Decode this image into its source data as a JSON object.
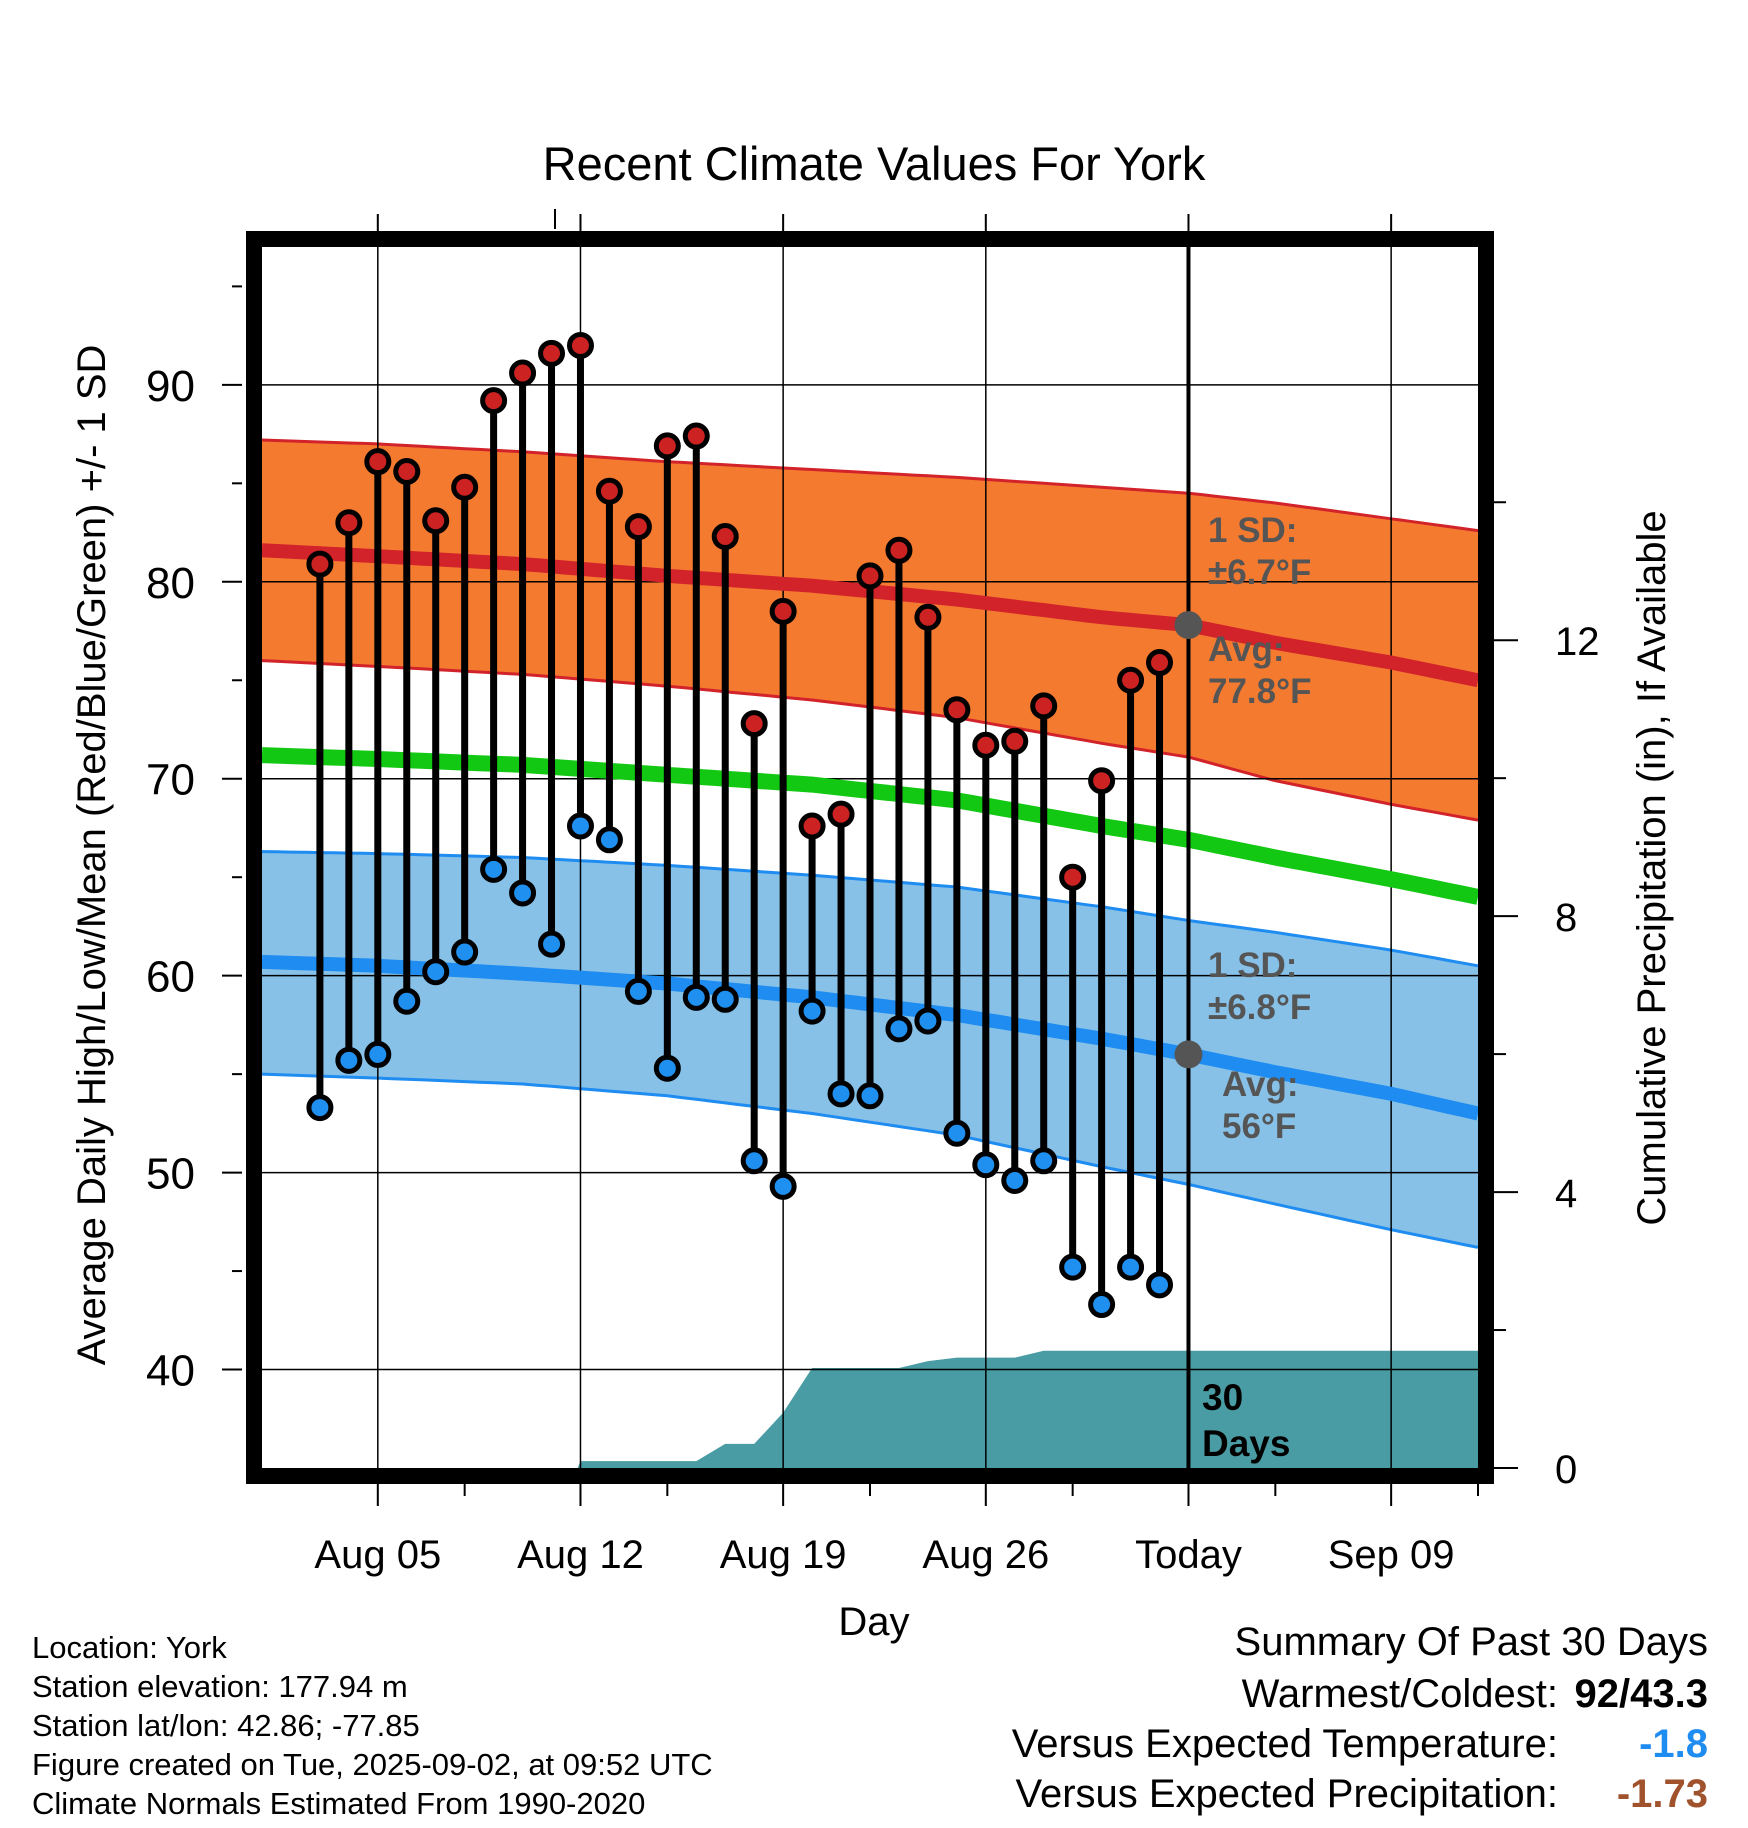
{
  "chart_data": {
    "type": "line",
    "title": "Recent Climate Values For York",
    "xlabel": "Day",
    "ylabel_left": "Average Daily High/Low/Mean (Red/Blue/Green) +/- 1 SD",
    "ylabel_right": "Cumulative Precipitation (in), If Available",
    "x_day_range": [
      1,
      43
    ],
    "x_ticks": [
      {
        "day": 5,
        "label": "Aug 05"
      },
      {
        "day": 12,
        "label": "Aug 12"
      },
      {
        "day": 19,
        "label": "Aug 19"
      },
      {
        "day": 26,
        "label": "Aug 26"
      },
      {
        "day": 33,
        "label": "Today"
      },
      {
        "day": 40,
        "label": "Sep 09"
      }
    ],
    "ylim_temp": [
      35,
      97
    ],
    "y_ticks_temp": [
      40,
      50,
      60,
      70,
      80,
      90
    ],
    "ylim_precip": [
      0,
      17.7
    ],
    "y_ticks_precip": [
      0,
      4,
      8,
      12
    ],
    "grid": true,
    "highs": [
      80.9,
      83.0,
      86.1,
      85.6,
      83.1,
      84.8,
      89.2,
      90.6,
      91.6,
      92.0,
      84.6,
      82.8,
      86.9,
      87.4,
      82.3,
      72.8,
      78.5,
      67.6,
      68.2,
      80.3,
      81.6,
      78.2,
      73.5,
      71.7,
      71.9,
      73.7,
      65.0,
      69.9,
      75.0,
      75.9
    ],
    "lows": [
      53.3,
      55.7,
      56.0,
      58.7,
      60.2,
      61.2,
      65.4,
      64.2,
      61.6,
      67.6,
      66.9,
      59.2,
      55.3,
      58.9,
      58.8,
      50.6,
      49.3,
      58.2,
      54.0,
      53.9,
      57.3,
      57.7,
      52.0,
      50.4,
      49.6,
      50.6,
      45.2,
      43.3,
      45.2,
      44.3
    ],
    "normal_high": {
      "days": [
        1,
        5,
        10,
        15,
        20,
        25,
        30,
        33,
        36,
        40,
        43
      ],
      "mean": [
        81.6,
        81.3,
        80.9,
        80.3,
        79.8,
        79.1,
        78.2,
        77.8,
        76.9,
        75.9,
        75.0
      ],
      "upper": [
        87.2,
        87.0,
        86.6,
        86.1,
        85.7,
        85.3,
        84.8,
        84.5,
        84.0,
        83.2,
        82.6
      ],
      "lower": [
        76.0,
        75.7,
        75.3,
        74.7,
        74.0,
        73.1,
        71.8,
        71.1,
        69.9,
        68.7,
        67.9
      ]
    },
    "normal_mean": {
      "days": [
        1,
        5,
        10,
        15,
        20,
        25,
        30,
        33,
        36,
        40,
        43
      ],
      "values": [
        71.2,
        71.0,
        70.7,
        70.2,
        69.7,
        68.9,
        67.6,
        66.9,
        66.0,
        64.9,
        64.0
      ]
    },
    "normal_low": {
      "days": [
        1,
        5,
        10,
        15,
        20,
        25,
        30,
        33,
        36,
        40,
        43
      ],
      "mean": [
        60.7,
        60.5,
        60.1,
        59.6,
        58.9,
        58.0,
        56.8,
        56.0,
        55.1,
        54.0,
        53.0
      ],
      "upper": [
        66.3,
        66.2,
        66.0,
        65.6,
        65.1,
        64.5,
        63.5,
        62.8,
        62.2,
        61.3,
        60.5
      ],
      "lower": [
        55.0,
        54.8,
        54.5,
        53.9,
        53.0,
        51.9,
        50.3,
        49.4,
        48.4,
        47.1,
        46.2
      ]
    },
    "precip": {
      "days": [
        1,
        11,
        11.9,
        12,
        14,
        15,
        16,
        17,
        18,
        19,
        20,
        21,
        22,
        23,
        24,
        25,
        26,
        27,
        28,
        29,
        30,
        31,
        43
      ],
      "values": [
        0,
        0,
        0,
        0.1,
        0.1,
        0.1,
        0.1,
        0.35,
        0.35,
        0.8,
        1.45,
        1.45,
        1.45,
        1.45,
        1.55,
        1.6,
        1.6,
        1.6,
        1.7,
        1.7,
        1.7,
        1.7,
        1.7
      ]
    },
    "annotations": {
      "high_sd": "1 SD:",
      "high_sd_value": "±6.7°F",
      "high_avg": "Avg:",
      "high_avg_value": "77.8°F",
      "low_sd": "1 SD:",
      "low_sd_value": "±6.8°F",
      "low_avg": "Avg:",
      "low_avg_value": "56°F",
      "days_count": "30",
      "days_label": "Days"
    },
    "colors": {
      "high_band": "#f47a30",
      "high_line": "#d2222a",
      "mean_line": "#12c812",
      "low_band": "#87c1e8",
      "low_line": "#1e8cf0",
      "precip": "#4a9ca4",
      "high_dot": "#cc2222",
      "low_dot": "#2090f0",
      "annotation": "#555555"
    }
  },
  "info": {
    "location": "Location: York",
    "elevation": "Station elevation: 177.94 m",
    "latlon": "Station lat/lon: 42.86; -77.85",
    "created": "Figure created on Tue, 2025-09-02, at 09:52 UTC",
    "normals": "Climate Normals Estimated From 1990-2020"
  },
  "summary": {
    "title": "Summary Of Past 30 Days",
    "warm_cold_label": "Warmest/Coldest:",
    "warm_cold_value": "92/43.3",
    "temp_label": "Versus Expected Temperature:",
    "temp_value": "-1.8",
    "temp_color": "#1e8cf0",
    "precip_label": "Versus Expected Precipitation:",
    "precip_value": "-1.73",
    "precip_color": "#a0522d"
  }
}
